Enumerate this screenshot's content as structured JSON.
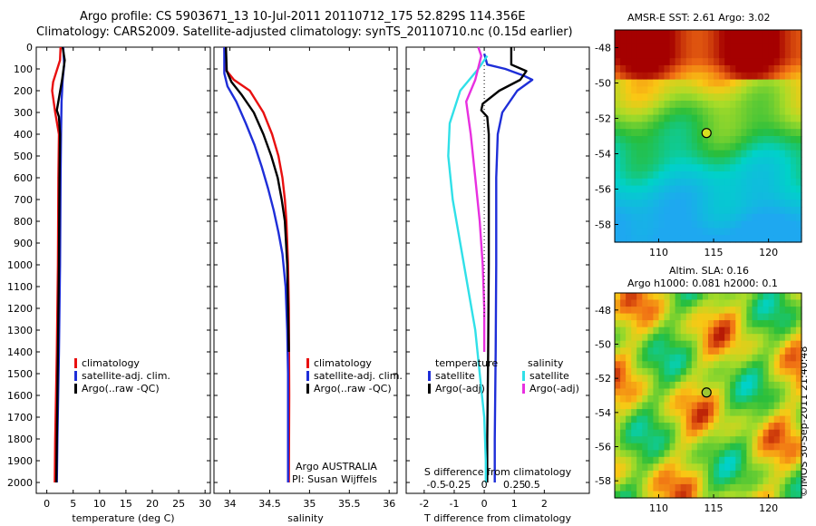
{
  "header": {
    "line1": "Argo profile: CS 5903671_13 10-Jul-2011 20110712_175 52.829S 114.356E",
    "line2": "Climatology: CARS2009. Satellite-adjusted climatology: synTS_20110710.nc (0.15d earlier)"
  },
  "map_top": {
    "title": "AMSR-E SST: 2.61 Argo: 3.02"
  },
  "map_bottom": {
    "title1": "Altim. SLA: 0.16",
    "title2": "Argo h1000: 0.081 h2000: 0.1"
  },
  "footer_stamp": "©IMOS 30-Sep-2011 21:40:48",
  "colors": {
    "climatology": "#e81010",
    "satellite": "#1e2ed8",
    "argo": "#000000",
    "sal_satellite": "#30e0e8",
    "sal_argo": "#e830e0",
    "warm": "#a50000",
    "cold": "#1ea8f0"
  },
  "chart_data": [
    {
      "type": "line",
      "xlabel": "temperature (deg C)",
      "ylabel": "",
      "xlim": [
        -2,
        31
      ],
      "ylim": [
        2050,
        0
      ],
      "xticks": [
        0,
        5,
        10,
        15,
        20,
        25,
        30
      ],
      "yticks": [
        0,
        100,
        200,
        300,
        400,
        500,
        600,
        700,
        800,
        900,
        1000,
        1100,
        1200,
        1300,
        1400,
        1500,
        1600,
        1700,
        1800,
        1900,
        2000
      ],
      "legend_position": "center-left",
      "series": [
        {
          "name": "climatology",
          "color": "climatology",
          "points": [
            [
              2.6,
              0
            ],
            [
              2.5,
              60
            ],
            [
              1.2,
              160
            ],
            [
              1.0,
              200
            ],
            [
              1.6,
              300
            ],
            [
              2.3,
              400
            ],
            [
              2.2,
              600
            ],
            [
              2.1,
              1000
            ],
            [
              1.9,
              1400
            ],
            [
              1.6,
              1800
            ],
            [
              1.5,
              2000
            ]
          ]
        },
        {
          "name": "satellite-adj. clim.",
          "color": "satellite",
          "points": [
            [
              3.1,
              0
            ],
            [
              3.3,
              80
            ],
            [
              3.0,
              150
            ],
            [
              2.8,
              250
            ],
            [
              2.7,
              400
            ],
            [
              2.6,
              600
            ],
            [
              2.5,
              1000
            ],
            [
              2.3,
              1400
            ],
            [
              2.0,
              1800
            ],
            [
              1.9,
              2000
            ]
          ]
        },
        {
          "name": "Argo(..raw -QC)",
          "color": "argo",
          "points": [
            [
              3.0,
              0
            ],
            [
              3.4,
              60
            ],
            [
              2.9,
              150
            ],
            [
              2.4,
              220
            ],
            [
              1.9,
              290
            ],
            [
              2.3,
              320
            ],
            [
              2.5,
              400
            ],
            [
              2.4,
              600
            ],
            [
              2.3,
              1000
            ],
            [
              2.1,
              1400
            ],
            [
              1.9,
              1800
            ],
            [
              1.8,
              2000
            ]
          ]
        }
      ]
    },
    {
      "type": "line",
      "xlabel": "salinity",
      "ylabel": "",
      "xlim": [
        33.8,
        36.1
      ],
      "ylim": [
        2050,
        0
      ],
      "xticks": [
        34,
        34.5,
        35,
        35.5,
        36
      ],
      "legend_position": "center-right",
      "series": [
        {
          "name": "climatology",
          "color": "climatology",
          "points": [
            [
              33.93,
              0
            ],
            [
              33.94,
              100
            ],
            [
              34.05,
              150
            ],
            [
              34.25,
              200
            ],
            [
              34.42,
              300
            ],
            [
              34.53,
              400
            ],
            [
              34.61,
              500
            ],
            [
              34.66,
              600
            ],
            [
              34.69,
              700
            ],
            [
              34.71,
              800
            ],
            [
              34.73,
              1000
            ],
            [
              34.74,
              1200
            ],
            [
              34.745,
              1600
            ],
            [
              34.74,
              2000
            ]
          ]
        },
        {
          "name": "satellite-adj. clim.",
          "color": "satellite",
          "points": [
            [
              33.93,
              0
            ],
            [
              33.93,
              120
            ],
            [
              33.97,
              180
            ],
            [
              34.08,
              250
            ],
            [
              34.2,
              350
            ],
            [
              34.31,
              450
            ],
            [
              34.4,
              550
            ],
            [
              34.48,
              650
            ],
            [
              34.55,
              750
            ],
            [
              34.61,
              850
            ],
            [
              34.66,
              950
            ],
            [
              34.7,
              1100
            ],
            [
              34.72,
              1300
            ],
            [
              34.73,
              1500
            ],
            [
              34.73,
              2000
            ]
          ]
        },
        {
          "name": "Argo(..raw -QC)",
          "color": "argo",
          "points": [
            [
              33.95,
              0
            ],
            [
              33.96,
              110
            ],
            [
              34.02,
              160
            ],
            [
              34.15,
              220
            ],
            [
              34.3,
              300
            ],
            [
              34.42,
              400
            ],
            [
              34.52,
              500
            ],
            [
              34.6,
              600
            ],
            [
              34.65,
              700
            ],
            [
              34.69,
              800
            ],
            [
              34.72,
              1000
            ],
            [
              34.73,
              1200
            ],
            [
              34.74,
              1400
            ]
          ]
        }
      ],
      "annotations": [
        "Argo AUSTRALIA",
        "PI: Susan Wijffels"
      ]
    },
    {
      "type": "line",
      "xlabel": "T difference from climatology",
      "x2label": "S difference from climatology",
      "ylabel": "",
      "xlim": [
        -2.6,
        3.5
      ],
      "ylim": [
        2050,
        0
      ],
      "xticks": [
        -2,
        -1,
        0,
        1,
        2
      ],
      "x2ticks": [
        "-0.5",
        "-0.25",
        "0",
        "0.25",
        "0.5"
      ],
      "legend_position": "center",
      "legend_groups": [
        "temperature",
        "salinity"
      ],
      "series": [
        {
          "name": "satellite",
          "group": "temperature",
          "color": "satellite",
          "points": [
            [
              0.0,
              30
            ],
            [
              0.1,
              80
            ],
            [
              0.7,
              100
            ],
            [
              1.3,
              130
            ],
            [
              1.6,
              150
            ],
            [
              1.1,
              200
            ],
            [
              0.6,
              300
            ],
            [
              0.45,
              400
            ],
            [
              0.4,
              600
            ],
            [
              0.4,
              1000
            ],
            [
              0.38,
              1400
            ],
            [
              0.35,
              1800
            ],
            [
              0.35,
              2000
            ]
          ]
        },
        {
          "name": "Argo(-adj)",
          "group": "temperature",
          "color": "argo",
          "points": [
            [
              0.9,
              0
            ],
            [
              0.9,
              80
            ],
            [
              1.4,
              110
            ],
            [
              1.2,
              150
            ],
            [
              0.5,
              200
            ],
            [
              -0.05,
              260
            ],
            [
              -0.1,
              290
            ],
            [
              0.1,
              320
            ],
            [
              0.15,
              400
            ],
            [
              0.15,
              600
            ],
            [
              0.15,
              1000
            ],
            [
              0.13,
              1400
            ],
            [
              0.1,
              1800
            ],
            [
              0.1,
              2000
            ]
          ]
        },
        {
          "name": "satellite",
          "group": "salinity",
          "color": "sal_satellite",
          "points": [
            [
              0.1,
              40
            ],
            [
              -0.2,
              100
            ],
            [
              -0.8,
              200
            ],
            [
              -1.15,
              350
            ],
            [
              -1.2,
              500
            ],
            [
              -1.05,
              700
            ],
            [
              -0.8,
              900
            ],
            [
              -0.55,
              1100
            ],
            [
              -0.3,
              1300
            ],
            [
              -0.15,
              1500
            ],
            [
              0.0,
              1700
            ],
            [
              0.05,
              1900
            ],
            [
              0.05,
              2000
            ]
          ]
        },
        {
          "name": "Argo(-adj)",
          "group": "salinity",
          "color": "sal_argo",
          "points": [
            [
              -0.2,
              0
            ],
            [
              -0.1,
              40
            ],
            [
              -0.3,
              150
            ],
            [
              -0.6,
              250
            ],
            [
              -0.45,
              400
            ],
            [
              -0.3,
              600
            ],
            [
              -0.15,
              800
            ],
            [
              -0.05,
              1000
            ],
            [
              0.0,
              1200
            ],
            [
              0.0,
              1400
            ]
          ]
        }
      ]
    },
    {
      "type": "heatmap",
      "title": "AMSR-E SST: 2.61 Argo: 3.02",
      "xlim": [
        106,
        123
      ],
      "ylim": [
        -59,
        -47
      ],
      "xticks": [
        110,
        115,
        120
      ],
      "yticks": [
        -48,
        -50,
        -52,
        -54,
        -56,
        -58
      ],
      "marker": [
        114.356,
        -52.829
      ]
    },
    {
      "type": "heatmap",
      "title": "Altim. SLA: 0.16",
      "subtitle": "Argo h1000: 0.081 h2000: 0.1",
      "xlim": [
        106,
        123
      ],
      "ylim": [
        -59,
        -47
      ],
      "xticks": [
        110,
        115,
        120
      ],
      "yticks": [
        -48,
        -50,
        -52,
        -54,
        -56,
        -58
      ],
      "marker": [
        114.356,
        -52.829
      ]
    }
  ]
}
